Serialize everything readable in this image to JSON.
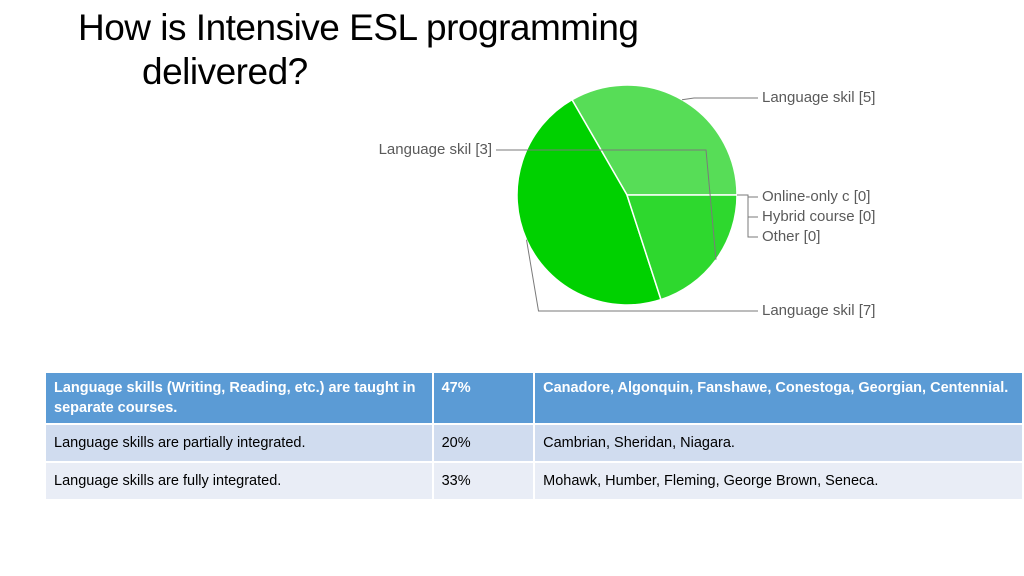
{
  "slide": {
    "title_line1": "How is Intensive ESL programming",
    "title_line2": "delivered?"
  },
  "chart_data": {
    "type": "pie",
    "slices": [
      {
        "label": "Language skil [5]",
        "value": 5,
        "color": "#57dd57"
      },
      {
        "label": "Online-only c [0]",
        "value": 0,
        "color": "#57dd57"
      },
      {
        "label": "Hybrid course [0]",
        "value": 0,
        "color": "#57dd57"
      },
      {
        "label": "Other [0]",
        "value": 0,
        "color": "#57dd57"
      },
      {
        "label": "Language skil [7]",
        "value": 7,
        "color": "#00d100"
      },
      {
        "label": "Language skil [3]",
        "value": 3,
        "color": "#2ed82e"
      }
    ],
    "legend": "callout labels"
  },
  "table": {
    "rows": [
      {
        "desc": "Language skills (Writing, Reading, etc.) are taught in separate courses.",
        "pct": "47%",
        "colleges": "Canadore, Algonquin, Fanshawe, Conestoga, Georgian, Centennial."
      },
      {
        "desc": "Language skills are partially integrated.",
        "pct": "20%",
        "colleges": "Cambrian, Sheridan, Niagara."
      },
      {
        "desc": "Language skills are fully integrated.",
        "pct": "33%",
        "colleges": "Mohawk, Humber, Fleming, George Brown, Seneca."
      }
    ]
  }
}
